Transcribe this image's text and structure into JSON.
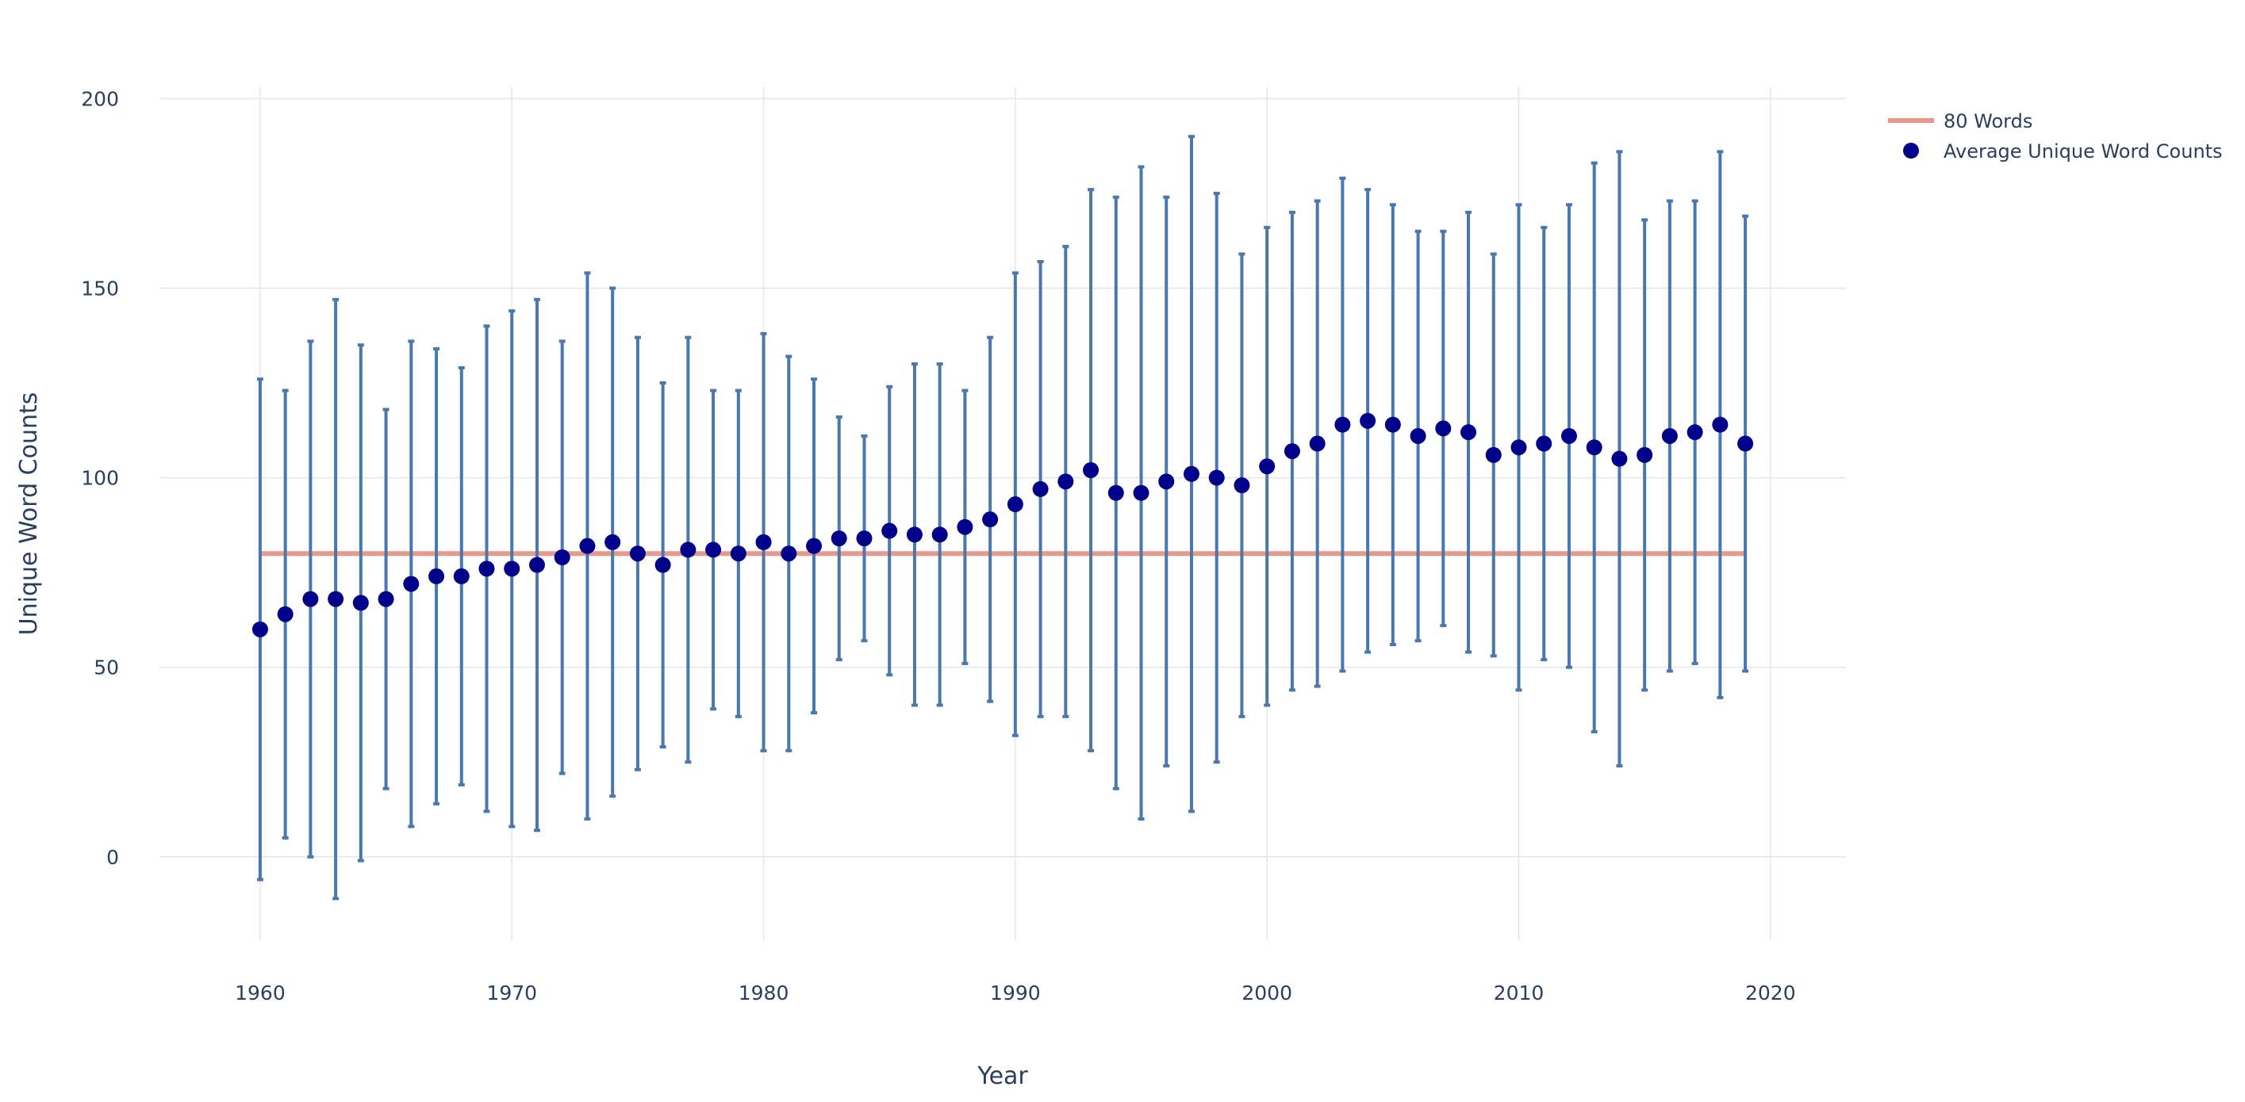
{
  "chart_data": {
    "type": "scatter",
    "title": "",
    "xlabel": "Year",
    "ylabel": "Unique Word Counts",
    "xlim": [
      1956,
      2023
    ],
    "ylim": [
      -22,
      203
    ],
    "x_ticks": [
      1960,
      1970,
      1980,
      1990,
      2000,
      2010,
      2020
    ],
    "y_ticks": [
      0,
      50,
      100,
      150,
      200
    ],
    "grid": true,
    "legend_position": "top-right",
    "series": [
      {
        "name": "80 Words",
        "kind": "line",
        "color": "#e8998d",
        "x": [
          1960,
          2019
        ],
        "y": [
          80,
          80
        ]
      },
      {
        "name": "Average Unique Word Counts",
        "kind": "markers",
        "color": "#00008b",
        "error_color": "#4a78ad",
        "x": [
          1960,
          1961,
          1962,
          1963,
          1964,
          1965,
          1966,
          1967,
          1968,
          1969,
          1970,
          1971,
          1972,
          1973,
          1974,
          1975,
          1976,
          1977,
          1978,
          1979,
          1980,
          1981,
          1982,
          1983,
          1984,
          1985,
          1986,
          1987,
          1988,
          1989,
          1990,
          1991,
          1992,
          1993,
          1994,
          1995,
          1996,
          1997,
          1998,
          1999,
          2000,
          2001,
          2002,
          2003,
          2004,
          2005,
          2006,
          2007,
          2008,
          2009,
          2010,
          2011,
          2012,
          2013,
          2014,
          2015,
          2016,
          2017,
          2018,
          2019
        ],
        "y": [
          60,
          64,
          68,
          68,
          67,
          68,
          72,
          74,
          74,
          76,
          76,
          77,
          79,
          82,
          83,
          80,
          77,
          81,
          81,
          80,
          83,
          80,
          82,
          84,
          84,
          86,
          85,
          85,
          87,
          89,
          93,
          97,
          99,
          102,
          96,
          96,
          99,
          101,
          100,
          98,
          103,
          107,
          109,
          114,
          115,
          114,
          111,
          113,
          112,
          106,
          108,
          109,
          111,
          108,
          105,
          106,
          111,
          112,
          114,
          109
        ],
        "error": [
          66,
          59,
          68,
          79,
          68,
          50,
          64,
          60,
          55,
          64,
          68,
          70,
          57,
          72,
          67,
          57,
          48,
          56,
          42,
          43,
          55,
          52,
          44,
          32,
          27,
          38,
          45,
          45,
          36,
          48,
          61,
          60,
          62,
          74,
          78,
          86,
          75,
          89,
          75,
          61,
          63,
          63,
          64,
          65,
          61,
          58,
          54,
          52,
          58,
          53,
          64,
          57,
          61,
          75,
          81,
          62,
          62,
          61,
          72,
          60
        ]
      }
    ]
  }
}
